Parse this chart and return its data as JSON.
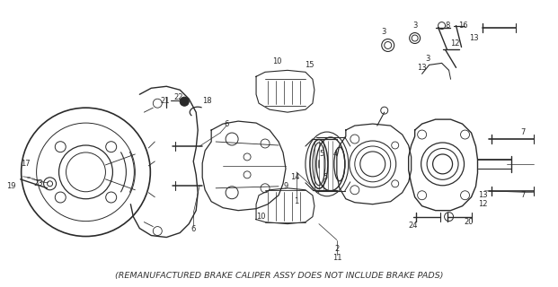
{
  "footer_text": "(REMANUFACTURED BRAKE CALIPER ASSY DOES NOT INCLUDE BRAKE PADS)",
  "footer_fontsize": 6.8,
  "footer_color": "#333333",
  "bg_color": "#ffffff",
  "fig_width": 6.21,
  "fig_height": 3.2,
  "dpi": 100,
  "line_color": "#2a2a2a",
  "label_fontsize": 6.0
}
